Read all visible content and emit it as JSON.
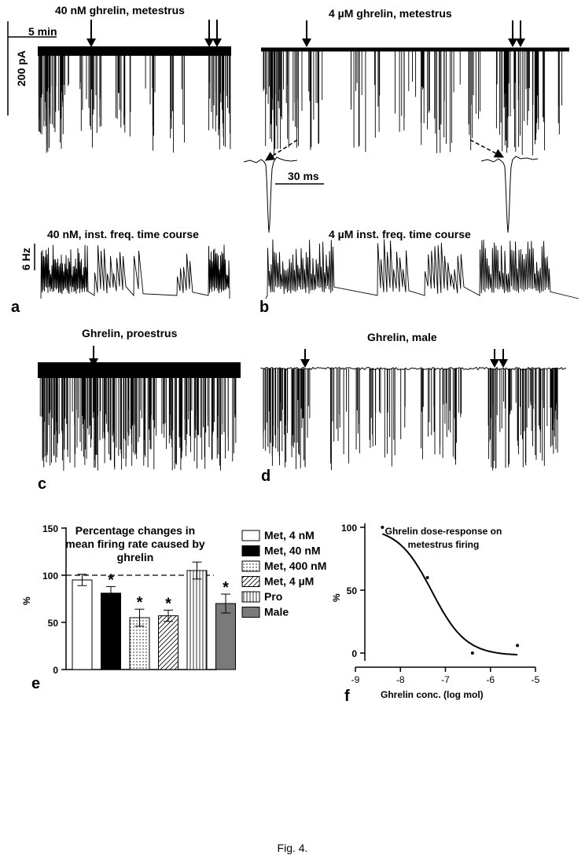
{
  "panels": {
    "a": {
      "letter": "a",
      "title": "40 nM ghrelin, metestrus",
      "subtitle": "40 nM, inst. freq. time course",
      "time_scale": "5 min",
      "current_scale": "200 pA",
      "freq_scale": "6 Hz"
    },
    "b": {
      "letter": "b",
      "title": "4 µM ghrelin, metestrus",
      "subtitle": "4 µM inst. freq. time course",
      "spike_scale": "30 ms"
    },
    "c": {
      "letter": "c",
      "title": "Ghrelin, proestrus"
    },
    "d": {
      "letter": "d",
      "title": "Ghrelin, male"
    }
  },
  "chart_data": [
    {
      "type": "bar",
      "panel": "e",
      "title": "Percentage changes in mean firing rate caused by ghrelin",
      "title_lines": [
        "Percentage changes in",
        "mean firing rate caused by",
        "ghrelin"
      ],
      "ylabel": "%",
      "ylim": [
        0,
        150
      ],
      "yticks": [
        0,
        50,
        100,
        150
      ],
      "reference_line": 100,
      "categories": [
        "Met, 4 nM",
        "Met, 40 nM",
        "Met, 400 nM",
        "Met, 4 µM",
        "Pro",
        "Male"
      ],
      "values": [
        95,
        81,
        55,
        57,
        105,
        70
      ],
      "errors": [
        6,
        7,
        9,
        6,
        9,
        10
      ],
      "significant": [
        false,
        true,
        true,
        true,
        false,
        true
      ],
      "significance_marker": "*",
      "fills": [
        "white",
        "black",
        "dotted",
        "diagonal-hatch",
        "vertical-stripes",
        "gray"
      ],
      "legend": "right"
    },
    {
      "type": "scatter",
      "panel": "f",
      "title": "Ghrelin dose-response on metestrus firing",
      "title_lines": [
        "Ghrelin dose-response on",
        "metestrus firing"
      ],
      "xlabel": "Ghrelin conc. (log mol)",
      "ylabel": "%",
      "xlim": [
        -9,
        -5
      ],
      "ylim": [
        0,
        100
      ],
      "xticks": [
        -9,
        -8,
        -7,
        -6,
        -5
      ],
      "yticks": [
        0,
        50,
        100
      ],
      "points": [
        {
          "x": -8.4,
          "y": 100
        },
        {
          "x": -7.4,
          "y": 60
        },
        {
          "x": -6.4,
          "y": 0
        },
        {
          "x": -5.4,
          "y": 6
        }
      ],
      "fit": {
        "type": "sigmoid",
        "top": 100,
        "bottom": -2,
        "logEC50": -7.3,
        "slope": -1.15,
        "x_range": [
          -8.4,
          -5.4
        ]
      }
    }
  ],
  "caption": "Fig. 4."
}
